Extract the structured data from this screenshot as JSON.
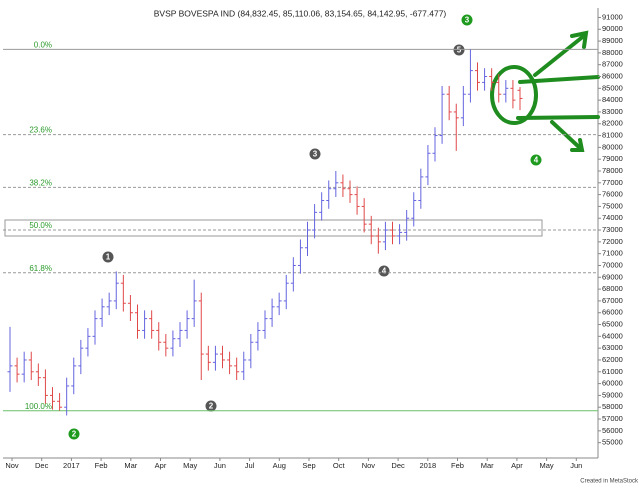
{
  "chart_data": {
    "type": "ohlc",
    "title": "BVSP BOVESPA IND (84,832.45, 85,110.06, 83,154.65, 84,142.95, -677.477)",
    "footer": "Created in MetaStock",
    "x_labels": [
      "Nov",
      "Dec",
      "2017",
      "Feb",
      "Mar",
      "Apr",
      "May",
      "Jun",
      "Jul",
      "Aug",
      "Sep",
      "Oct",
      "Nov",
      "Dec",
      "2018",
      "Feb",
      "Mar",
      "Apr",
      "May",
      "Jun"
    ],
    "up_color": "#6464e0",
    "down_color": "#e04848",
    "open": [
      61000,
      61500,
      60800,
      62000,
      61000,
      60500,
      59000,
      58500,
      58000,
      59800,
      61500,
      63000,
      64000,
      65500,
      66500,
      67000,
      68500,
      66800,
      66000,
      64500,
      65500,
      64500,
      63500,
      63000,
      63800,
      64500,
      65500,
      67000,
      62500,
      61800,
      62500,
      62000,
      61500,
      61000,
      62000,
      63500,
      64500,
      65500,
      66500,
      67000,
      68500,
      70000,
      71500,
      73000,
      74500,
      75500,
      76500,
      77000,
      76500,
      76000,
      75000,
      73500,
      72500,
      72000,
      73000,
      72500,
      72800,
      74000,
      75500,
      77500,
      79500,
      81000,
      84500,
      83000,
      82500,
      84500,
      86500,
      85500,
      86000,
      85500,
      84500,
      85000,
      84832
    ],
    "high": [
      64800,
      62200,
      62700,
      62700,
      61700,
      61200,
      59700,
      59200,
      60500,
      62200,
      63700,
      64700,
      66200,
      67200,
      67700,
      69500,
      69200,
      67500,
      66700,
      66200,
      66200,
      65200,
      64200,
      64500,
      65200,
      66200,
      68800,
      67700,
      63200,
      63200,
      63200,
      62700,
      62200,
      62700,
      64200,
      65200,
      66200,
      67200,
      67700,
      69200,
      70700,
      72200,
      73700,
      75200,
      76200,
      77200,
      78000,
      77700,
      77200,
      76700,
      75700,
      74200,
      73200,
      73700,
      73700,
      73500,
      74700,
      76200,
      78200,
      80200,
      81700,
      85200,
      85200,
      83700,
      85200,
      88300,
      87200,
      86700,
      86700,
      86200,
      85700,
      85700,
      85110
    ],
    "low": [
      59300,
      60100,
      60100,
      60300,
      59800,
      58300,
      57800,
      57700,
      57300,
      59100,
      60800,
      62300,
      63300,
      64800,
      65800,
      66300,
      66100,
      65300,
      63800,
      63800,
      63800,
      62800,
      62300,
      62300,
      63100,
      63800,
      64800,
      60300,
      61100,
      61100,
      61300,
      60800,
      60300,
      60300,
      61300,
      62800,
      63800,
      64800,
      65800,
      66300,
      67800,
      69300,
      70800,
      72300,
      73800,
      74800,
      75800,
      75800,
      75300,
      74300,
      72800,
      71800,
      71000,
      71300,
      71800,
      71800,
      72100,
      73300,
      74800,
      76800,
      78800,
      80300,
      82300,
      79700,
      81800,
      83800,
      84800,
      84800,
      84800,
      83800,
      83800,
      83300,
      83155
    ],
    "close": [
      61500,
      60800,
      62000,
      61000,
      60500,
      59000,
      58500,
      58000,
      59800,
      61500,
      63000,
      64000,
      65500,
      66500,
      67000,
      68500,
      66800,
      66000,
      64500,
      65500,
      64500,
      63500,
      63000,
      63800,
      64500,
      65500,
      67000,
      62500,
      61800,
      62500,
      62000,
      61500,
      61000,
      62000,
      63500,
      64500,
      65500,
      66500,
      67000,
      68500,
      70000,
      71500,
      73000,
      74500,
      75500,
      76500,
      77000,
      76500,
      76000,
      75000,
      73500,
      72500,
      72000,
      73000,
      72500,
      72800,
      74000,
      75500,
      77500,
      79500,
      81000,
      84500,
      83000,
      82500,
      84500,
      86500,
      85500,
      86000,
      85500,
      84500,
      85000,
      84000,
      84143
    ],
    "ylim": [
      53700,
      91800
    ],
    "yticks": [
      55000,
      56000,
      57000,
      58000,
      59000,
      60000,
      61000,
      62000,
      63000,
      64000,
      65000,
      66000,
      67000,
      68000,
      69000,
      70000,
      71000,
      72000,
      73000,
      74000,
      75000,
      76000,
      77000,
      78000,
      79000,
      80000,
      81000,
      82000,
      83000,
      84000,
      85000,
      86000,
      87000,
      88000,
      89000,
      90000,
      91000
    ],
    "fib_levels": [
      {
        "value": 88300,
        "label": "0.0%"
      },
      {
        "value": 81078,
        "label": "23.6%"
      },
      {
        "value": 76611,
        "label": "38.2%"
      },
      {
        "value": 73000,
        "label": "50.0%"
      },
      {
        "value": 69389,
        "label": "61.8%"
      },
      {
        "value": 57700,
        "label": "100.0%"
      }
    ],
    "annotations": [
      "1",
      "2",
      "3",
      "4",
      "5",
      "3",
      "4",
      "2"
    ]
  }
}
